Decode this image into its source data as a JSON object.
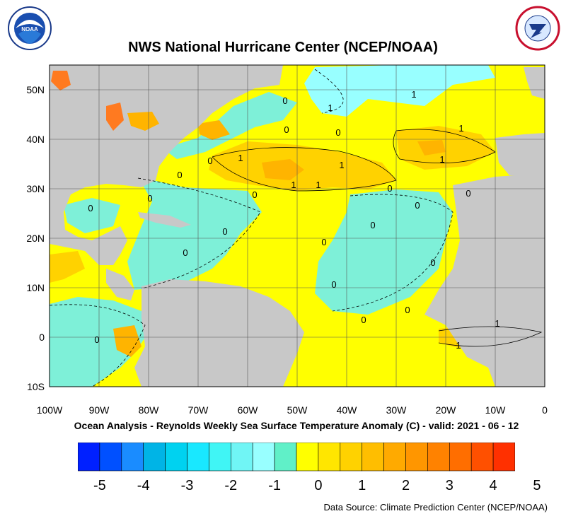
{
  "title": "NWS National Hurricane Center (NCEP/NOAA)",
  "caption": "Ocean Analysis - Reynolds Weekly Sea Surface Temperature Anomaly (C) - valid: 2021 - 06 - 12",
  "source": "Data Source: Climate Prediction Center (NCEP/NOAA)",
  "logos": {
    "left": "NOAA",
    "right": "NATIONAL WEATHER SERVICE"
  },
  "map": {
    "lon_labels": [
      "100W",
      "90W",
      "80W",
      "70W",
      "60W",
      "50W",
      "40W",
      "30W",
      "20W",
      "10W",
      "0"
    ],
    "lat_labels": [
      "50N",
      "40N",
      "30N",
      "20N",
      "10N",
      "0",
      "10S"
    ],
    "lon_range": [
      -100,
      0
    ],
    "lat_range": [
      -10,
      55
    ],
    "grid": true,
    "contour_labels": [
      "1",
      "1",
      "1",
      "1",
      "1",
      "1",
      "1",
      "1",
      "1",
      "1",
      "0",
      "0",
      "0",
      "0",
      "0",
      "0",
      "0",
      "0",
      "0",
      "0",
      "0",
      "0",
      "0",
      "0",
      "0",
      "0",
      "0",
      "0",
      "0",
      "0"
    ]
  },
  "colorbar": {
    "labels": [
      "-5",
      "-4",
      "-3",
      "-2",
      "-1",
      "0",
      "1",
      "2",
      "3",
      "4",
      "5"
    ],
    "colors": [
      "#0020ff",
      "#0050ff",
      "#1a8cff",
      "#00b4e6",
      "#00d2f0",
      "#19e8ff",
      "#40f5f5",
      "#70f5f5",
      "#98ffff",
      "#60f0c8",
      "#ffff00",
      "#ffe600",
      "#ffd200",
      "#ffbe00",
      "#ffaa00",
      "#ff9600",
      "#ff8200",
      "#ff6e00",
      "#ff5000",
      "#ff3000"
    ]
  },
  "palette": {
    "land": "#c8c8c8",
    "neg": "#7ef0d8",
    "neg2": "#98ffff",
    "pos1": "#ffff00",
    "pos2": "#ffd200",
    "pos3": "#ffb400",
    "hot": "#ff7a20"
  }
}
